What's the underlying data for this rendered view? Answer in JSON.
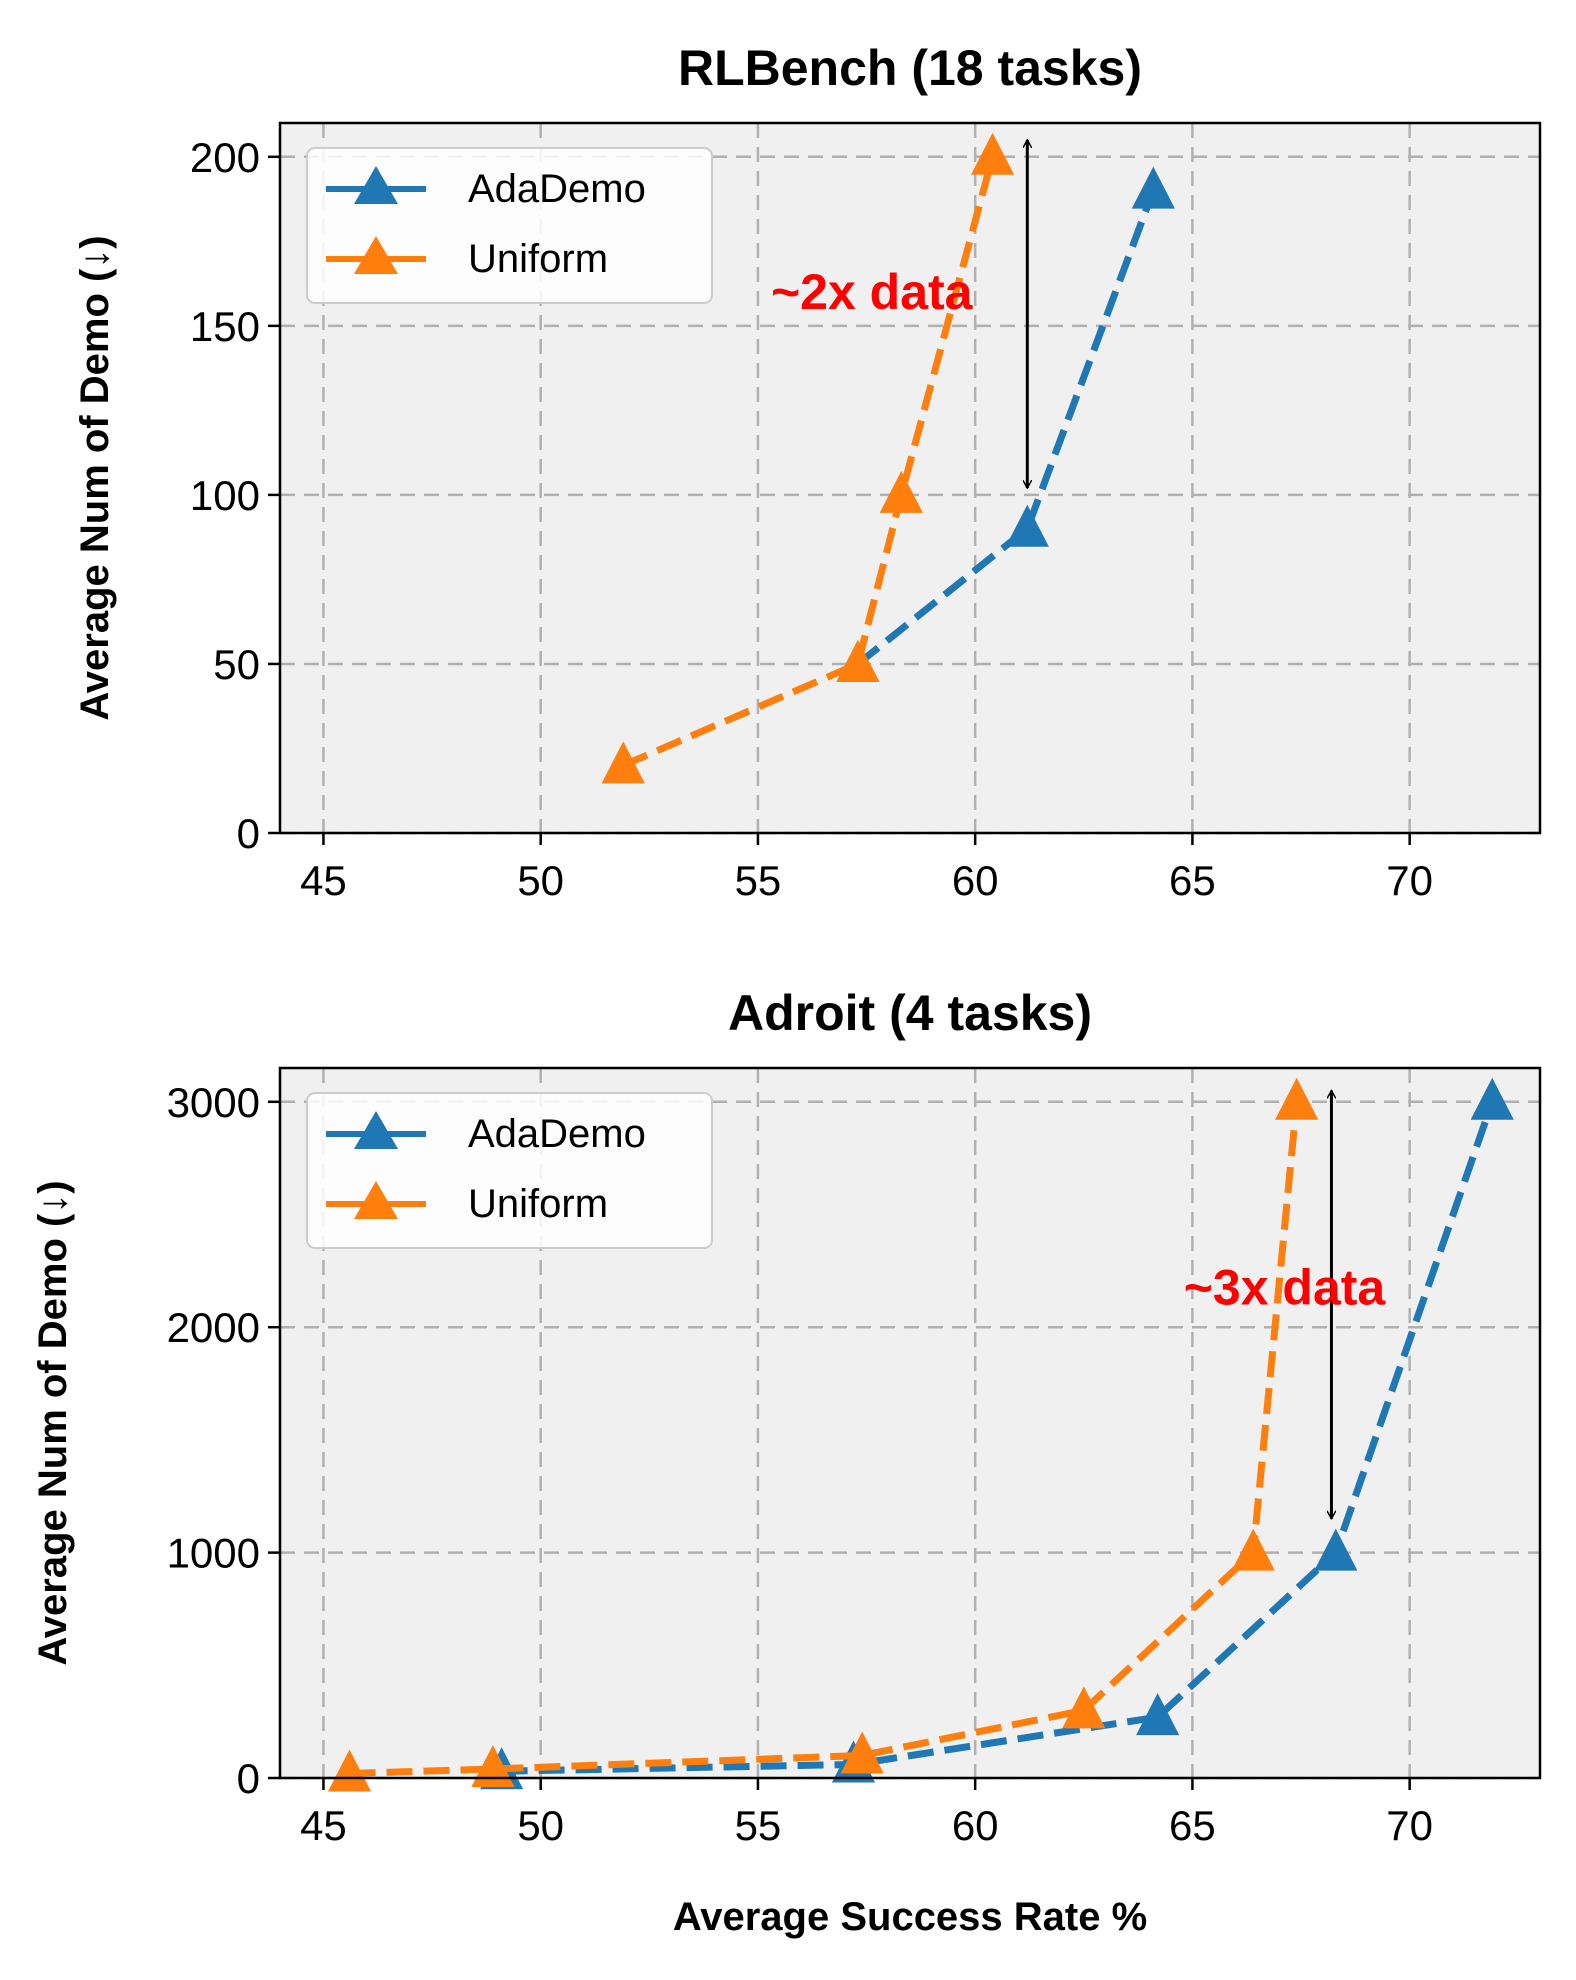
{
  "colors": {
    "AdaDemo": "#1f77b4",
    "Uniform": "#ff7f0e",
    "annotation": "#ff0000",
    "plot_background": "#f0f0f0",
    "grid": "#b0b0b0"
  },
  "chart_data": [
    {
      "type": "line",
      "title": "RLBench (18 tasks)",
      "xlabel": "",
      "ylabel": "Average Num of Demo (↓)",
      "xlim": [
        44,
        73
      ],
      "ylim": [
        0,
        210
      ],
      "xticks": [
        45,
        50,
        55,
        60,
        65,
        70
      ],
      "yticks": [
        0,
        50,
        100,
        150,
        200
      ],
      "grid": true,
      "legend_placement": "upper-left",
      "series": [
        {
          "name": "AdaDemo",
          "color_key": "AdaDemo",
          "x": [
            57.3,
            61.2,
            64.1
          ],
          "y": [
            50,
            90,
            190
          ]
        },
        {
          "name": "Uniform",
          "color_key": "Uniform",
          "x": [
            51.9,
            57.3,
            58.3,
            60.4
          ],
          "y": [
            20,
            50,
            100,
            200
          ]
        }
      ],
      "annotation": {
        "text": "~2x data",
        "text_x": 55.3,
        "text_y": 155,
        "arrow_x": 61.2,
        "arrow_y": [
          205,
          102
        ]
      }
    },
    {
      "type": "line",
      "title": "Adroit (4 tasks)",
      "xlabel": "Average Success Rate %",
      "ylabel": "Average Num of Demo (↓)",
      "xlim": [
        44,
        73
      ],
      "ylim": [
        0,
        3150
      ],
      "xticks": [
        45,
        50,
        55,
        60,
        65,
        70
      ],
      "yticks": [
        0,
        1000,
        2000,
        3000
      ],
      "grid": true,
      "legend_placement": "upper-left",
      "series": [
        {
          "name": "AdaDemo",
          "color_key": "AdaDemo",
          "x": [
            49.1,
            57.2,
            64.2,
            68.3,
            71.9
          ],
          "y": [
            30,
            60,
            270,
            1000,
            3000
          ]
        },
        {
          "name": "Uniform",
          "color_key": "Uniform",
          "x": [
            45.6,
            48.9,
            57.4,
            62.5,
            66.4,
            67.4
          ],
          "y": [
            20,
            40,
            100,
            300,
            1000,
            3000
          ]
        }
      ],
      "annotation": {
        "text": "~3x data",
        "text_x": 64.8,
        "text_y": 2100,
        "arrow_x": 68.2,
        "arrow_y": [
          3050,
          1150
        ]
      }
    }
  ]
}
